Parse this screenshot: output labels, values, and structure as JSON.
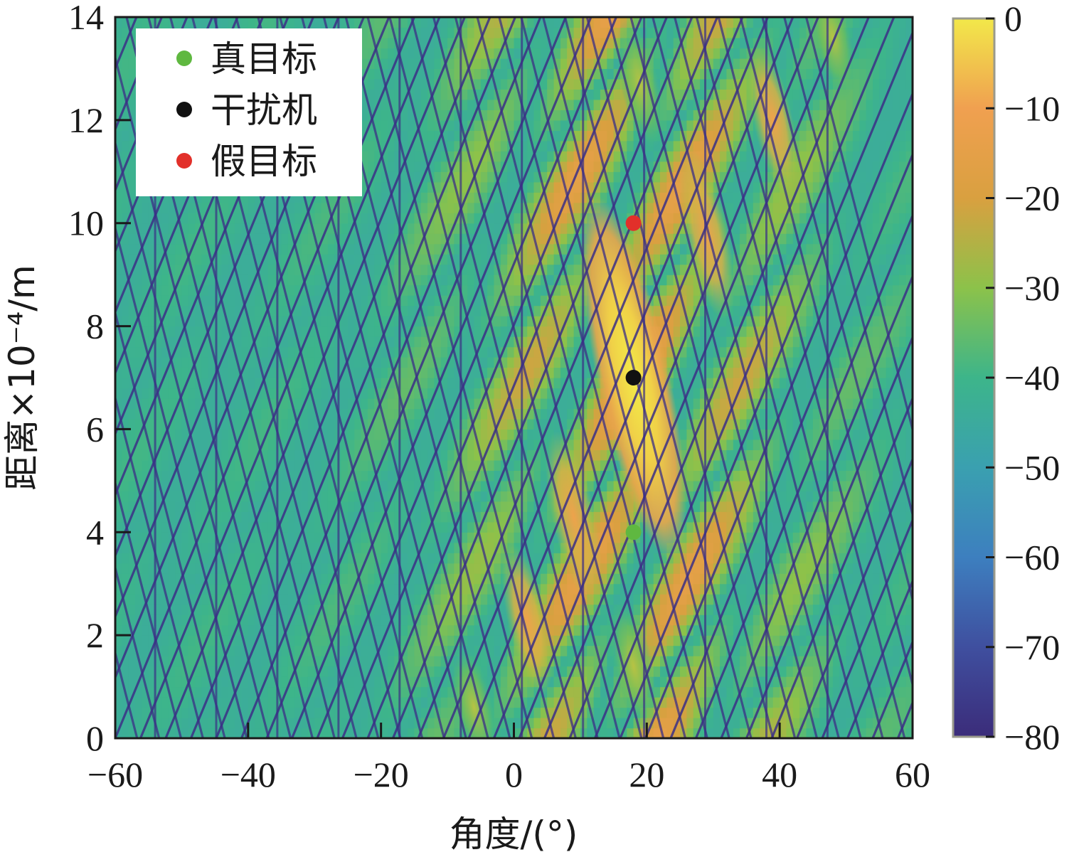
{
  "chart_data": {
    "type": "heatmap",
    "title": "",
    "xlabel": "角度/(°)",
    "ylabel": "距离×10⁻⁴/m",
    "xlim": [
      -60,
      60
    ],
    "ylim": [
      0,
      14
    ],
    "x_ticks": [
      -60,
      -40,
      -20,
      0,
      20,
      40,
      60
    ],
    "x_tick_labels": [
      "−60",
      "−40",
      "−20",
      "0",
      "20",
      "40",
      "60"
    ],
    "y_ticks": [
      0,
      2,
      4,
      6,
      8,
      10,
      12,
      14
    ],
    "y_tick_labels": [
      "0",
      "2",
      "4",
      "6",
      "8",
      "10",
      "12",
      "14"
    ],
    "colorbar": {
      "min": -80,
      "max": 0,
      "ticks": [
        0,
        -10,
        -20,
        -30,
        -40,
        -50,
        -60,
        -70,
        -80
      ],
      "tick_labels": [
        "0",
        "−10",
        "−20",
        "−30",
        "−40",
        "−50",
        "−60",
        "−70",
        "−80"
      ],
      "colormap": [
        "#3b2c7a",
        "#3f4f9f",
        "#3d7fbf",
        "#3aa0b0",
        "#3db58a",
        "#8cc24a",
        "#d9a040",
        "#f0a050",
        "#f2e84a"
      ]
    },
    "peak": {
      "x": 18,
      "y": 7,
      "value": 0
    },
    "points": [
      {
        "name": "真目标",
        "x": 18,
        "y": 4,
        "color": "#5fb840"
      },
      {
        "name": "干扰机",
        "x": 18,
        "y": 7,
        "color": "#111111"
      },
      {
        "name": "假目标",
        "x": 18,
        "y": 10,
        "color": "#e2302a"
      }
    ],
    "legend": {
      "position": "top-left",
      "entries": [
        {
          "label": "真目标",
          "color": "#5fb840"
        },
        {
          "label": "干扰机",
          "color": "#111111"
        },
        {
          "label": "假目标",
          "color": "#e2302a"
        }
      ]
    },
    "grid": false
  }
}
